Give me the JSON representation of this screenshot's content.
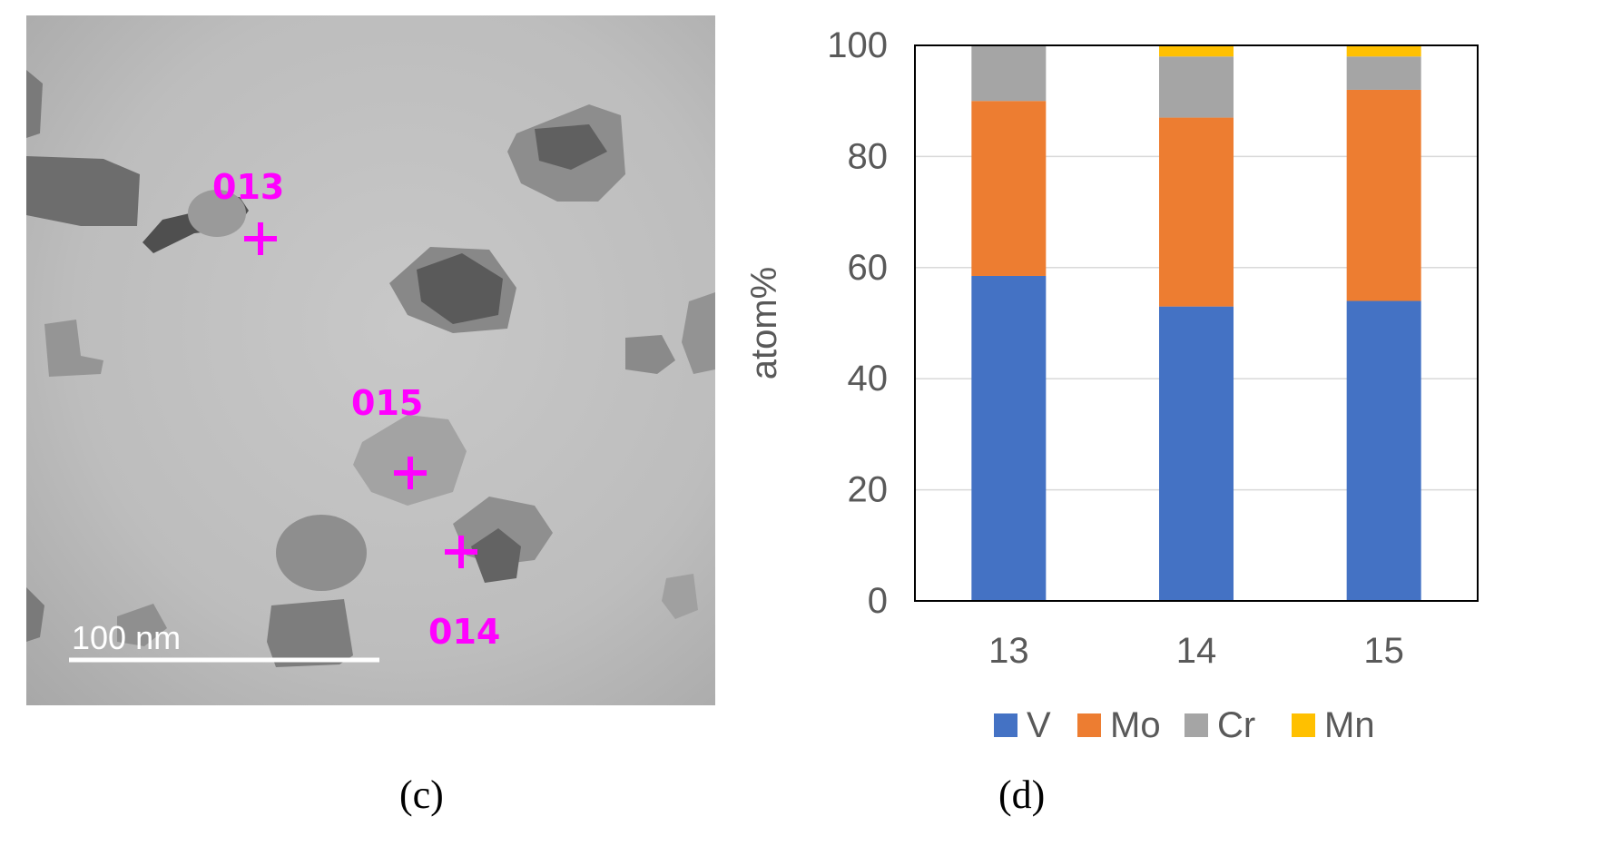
{
  "micrograph": {
    "scale_bar_label": "100 nm",
    "scale_bar_length_nm": 100,
    "markers": [
      {
        "label": "013"
      },
      {
        "label": "015"
      },
      {
        "label": "014"
      }
    ],
    "marker_color": "#ff00ff"
  },
  "captions": {
    "left": "(c)",
    "right": "(d)"
  },
  "chart_data": {
    "type": "bar",
    "stacked": true,
    "categories": [
      "13",
      "14",
      "15"
    ],
    "series": [
      {
        "name": "V",
        "color": "#4472c4",
        "values": [
          58.5,
          53,
          54
        ]
      },
      {
        "name": "Mo",
        "color": "#ed7d31",
        "values": [
          31.5,
          34,
          38
        ]
      },
      {
        "name": "Cr",
        "color": "#a5a5a5",
        "values": [
          10,
          11,
          6
        ]
      },
      {
        "name": "Mn",
        "color": "#ffc000",
        "values": [
          0,
          2,
          2
        ]
      }
    ],
    "ylabel": "atom%",
    "xlabel": "",
    "ylim": [
      0,
      100
    ],
    "yticks": [
      "0",
      "20",
      "40",
      "60",
      "80",
      "100"
    ],
    "grid": true,
    "legend_position": "bottom"
  }
}
